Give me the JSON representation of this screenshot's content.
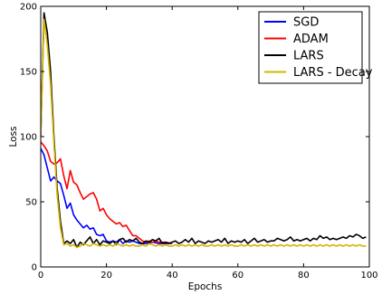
{
  "chart_data": {
    "type": "line",
    "xlabel": "Epochs",
    "ylabel": "Loss",
    "xlim": [
      0,
      100
    ],
    "ylim": [
      0,
      200
    ],
    "xticks": [
      0,
      20,
      40,
      60,
      80,
      100
    ],
    "yticks": [
      0,
      50,
      100,
      150,
      200
    ],
    "grid": false,
    "legend_position": "top-right",
    "series": [
      {
        "name": "SGD",
        "color": "#0000ff",
        "x": [
          0,
          1,
          2,
          3,
          4,
          5,
          6,
          7,
          8,
          9,
          10,
          11,
          12,
          13,
          14,
          15,
          16,
          17,
          18,
          19,
          20,
          21,
          22,
          23,
          24,
          25,
          26,
          27,
          28,
          29,
          30,
          32,
          34,
          36,
          38,
          40
        ],
        "y": [
          91,
          86,
          76,
          66,
          69,
          66,
          64,
          55,
          45,
          49,
          40,
          36,
          33,
          30,
          32,
          29,
          30,
          25,
          24,
          25,
          20,
          19,
          20,
          19,
          21,
          18,
          20,
          19,
          20,
          19,
          18,
          18,
          19,
          18,
          18,
          18
        ]
      },
      {
        "name": "ADAM",
        "color": "#ff0000",
        "x": [
          0,
          1,
          2,
          3,
          4,
          5,
          6,
          7,
          8,
          9,
          10,
          11,
          12,
          13,
          14,
          15,
          16,
          17,
          18,
          19,
          20,
          21,
          22,
          23,
          24,
          25,
          26,
          27,
          28,
          29,
          30,
          31,
          32,
          33,
          34,
          35,
          36,
          38,
          40
        ],
        "y": [
          96,
          93,
          89,
          81,
          79,
          80,
          83,
          70,
          60,
          74,
          65,
          63,
          57,
          52,
          54,
          56,
          57,
          52,
          43,
          45,
          40,
          37,
          35,
          33,
          34,
          31,
          32,
          28,
          24,
          24,
          22,
          20,
          19,
          20,
          19,
          20,
          19,
          19,
          18
        ]
      },
      {
        "name": "LARS",
        "color": "#000000",
        "x": [
          0,
          1,
          2,
          3,
          4,
          5,
          6,
          7,
          8,
          9,
          10,
          11,
          12,
          13,
          14,
          15,
          16,
          17,
          18,
          19,
          20,
          21,
          22,
          23,
          24,
          25,
          26,
          27,
          28,
          29,
          30,
          31,
          32,
          33,
          34,
          35,
          36,
          37,
          38,
          39,
          40,
          41,
          42,
          43,
          44,
          45,
          46,
          47,
          48,
          49,
          50,
          51,
          52,
          53,
          54,
          55,
          56,
          57,
          58,
          59,
          60,
          61,
          62,
          63,
          64,
          65,
          66,
          67,
          68,
          69,
          70,
          71,
          72,
          73,
          74,
          75,
          76,
          77,
          78,
          79,
          80,
          81,
          82,
          83,
          84,
          85,
          86,
          87,
          88,
          89,
          90,
          91,
          92,
          93,
          94,
          95,
          96,
          97,
          98,
          99
        ],
        "y": [
          100,
          195,
          180,
          150,
          100,
          60,
          35,
          18,
          20,
          18,
          21,
          15,
          19,
          17,
          20,
          23,
          18,
          21,
          17,
          20,
          19,
          18,
          20,
          17,
          21,
          22,
          19,
          21,
          20,
          22,
          19,
          18,
          20,
          19,
          21,
          20,
          22,
          18,
          19,
          18,
          19,
          20,
          18,
          19,
          21,
          19,
          22,
          18,
          20,
          19,
          18,
          20,
          19,
          20,
          21,
          19,
          22,
          18,
          20,
          19,
          20,
          19,
          21,
          18,
          20,
          22,
          19,
          20,
          21,
          19,
          20,
          20,
          22,
          21,
          20,
          21,
          23,
          20,
          21,
          20,
          21,
          22,
          20,
          22,
          21,
          24,
          22,
          23,
          21,
          22,
          21,
          22,
          23,
          22,
          24,
          23,
          25,
          24,
          22,
          23
        ]
      },
      {
        "name": "LARS - Decay",
        "color": "#d4b400",
        "x": [
          0,
          1,
          2,
          3,
          4,
          5,
          6,
          7,
          8,
          9,
          10,
          11,
          12,
          13,
          14,
          15,
          16,
          17,
          18,
          19,
          20,
          21,
          22,
          23,
          24,
          25,
          26,
          27,
          28,
          29,
          30,
          31,
          32,
          33,
          34,
          35,
          36,
          37,
          38,
          39,
          40,
          41,
          42,
          43,
          44,
          45,
          46,
          47,
          48,
          49,
          50,
          51,
          52,
          53,
          54,
          55,
          56,
          57,
          58,
          59,
          60,
          61,
          62,
          63,
          64,
          65,
          66,
          67,
          68,
          69,
          70,
          71,
          72,
          73,
          74,
          75,
          76,
          77,
          78,
          79,
          80,
          81,
          82,
          83,
          84,
          85,
          86,
          87,
          88,
          89,
          90,
          91,
          92,
          93,
          94,
          95,
          96,
          97,
          98,
          99
        ],
        "y": [
          100,
          190,
          170,
          140,
          95,
          55,
          30,
          17,
          18,
          16,
          17,
          15,
          16,
          18,
          17,
          16,
          18,
          17,
          16,
          17,
          16,
          17,
          16,
          18,
          17,
          16,
          17,
          16,
          17,
          16,
          16,
          17,
          16,
          18,
          17,
          16,
          17,
          16,
          17,
          16,
          16,
          17,
          16,
          17,
          16,
          17,
          16,
          17,
          16,
          17,
          16,
          16,
          17,
          16,
          17,
          16,
          17,
          16,
          17,
          16,
          16,
          17,
          16,
          17,
          16,
          17,
          16,
          17,
          16,
          17,
          16,
          17,
          16,
          17,
          16,
          17,
          16,
          17,
          16,
          17,
          16,
          17,
          16,
          17,
          16,
          17,
          16,
          17,
          16,
          17,
          16,
          17,
          16,
          17,
          16,
          17,
          16,
          17,
          16,
          16
        ]
      }
    ]
  }
}
